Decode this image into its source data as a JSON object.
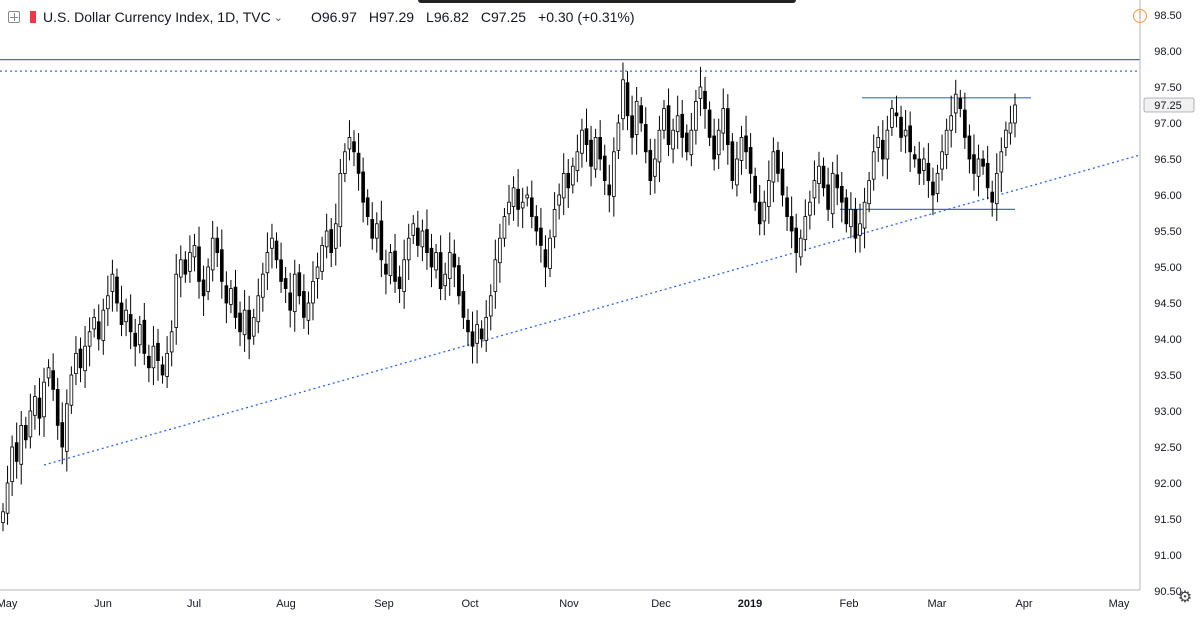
{
  "header": {
    "title": "U.S. Dollar Currency Index, 1D, TVC",
    "open": "O96.97",
    "high": "H97.29",
    "low": "L96.82",
    "close": "C97.25",
    "change": "+0.30 (+0.31%)"
  },
  "price_label": "97.25",
  "colors": {
    "candle_up": "#ffffff",
    "candle_down": "#000000",
    "candle_border": "#000000",
    "trendline": "#2962ff",
    "level_line": "#3a6fc4",
    "axis_text": "#131722",
    "alert": "#f89c3c"
  },
  "icons": {
    "symbol": "crosshair-box-icon",
    "alert": "alert-icon",
    "settings": "gear-icon"
  },
  "chart_data": {
    "type": "candlestick",
    "title": "U.S. Dollar Currency Index, 1D, TVC",
    "x_ticks": [
      "May",
      "Jun",
      "Jul",
      "Aug",
      "Sep",
      "Oct",
      "Nov",
      "Dec",
      "2019",
      "Feb",
      "Mar",
      "Apr",
      "May"
    ],
    "y_ticks": [
      "98.50",
      "98.00",
      "97.50",
      "97.00",
      "96.50",
      "96.00",
      "95.50",
      "95.00",
      "94.50",
      "94.00",
      "93.50",
      "93.00",
      "92.50",
      "92.00",
      "91.50",
      "91.00",
      "90.50"
    ],
    "ylim": [
      90.5,
      98.5
    ],
    "last_close": 97.25,
    "close_series": [
      91.6,
      92.0,
      92.5,
      92.3,
      92.8,
      92.6,
      93.0,
      93.2,
      92.9,
      93.4,
      93.6,
      93.3,
      92.8,
      92.5,
      93.1,
      93.5,
      93.8,
      93.6,
      93.9,
      94.1,
      94.3,
      94.0,
      94.4,
      94.6,
      94.9,
      94.5,
      94.2,
      94.4,
      94.1,
      93.9,
      94.2,
      93.8,
      93.6,
      93.9,
      93.7,
      93.5,
      93.8,
      94.1,
      94.9,
      95.1,
      94.9,
      95.2,
      95.3,
      94.8,
      94.6,
      95.0,
      95.4,
      95.2,
      94.8,
      94.5,
      94.7,
      94.3,
      94.1,
      94.4,
      94.0,
      94.3,
      94.6,
      94.9,
      95.2,
      95.4,
      95.1,
      94.8,
      94.7,
      94.4,
      94.9,
      94.6,
      94.3,
      94.5,
      94.8,
      95.0,
      95.3,
      95.5,
      95.2,
      95.6,
      96.3,
      96.6,
      96.8,
      96.6,
      96.3,
      95.9,
      95.7,
      95.4,
      95.6,
      95.1,
      94.9,
      95.2,
      94.8,
      94.7,
      95.1,
      95.4,
      95.6,
      95.3,
      95.5,
      95.2,
      95.0,
      95.2,
      94.7,
      94.9,
      95.2,
      95.0,
      94.6,
      94.3,
      94.1,
      93.9,
      94.2,
      94.0,
      94.3,
      94.6,
      95.1,
      95.4,
      95.7,
      95.9,
      96.1,
      95.8,
      95.9,
      96.0,
      95.7,
      95.5,
      95.3,
      95.0,
      95.4,
      95.8,
      96.0,
      96.3,
      96.1,
      96.4,
      96.6,
      96.9,
      96.7,
      96.4,
      96.8,
      96.5,
      96.2,
      96.0,
      96.6,
      97.0,
      97.6,
      97.1,
      96.8,
      97.3,
      97.0,
      96.6,
      96.2,
      96.5,
      96.9,
      97.2,
      96.7,
      96.9,
      97.1,
      96.8,
      96.6,
      96.9,
      97.3,
      97.5,
      97.2,
      96.8,
      96.5,
      96.9,
      97.2,
      96.7,
      96.2,
      96.5,
      96.8,
      96.6,
      96.3,
      95.9,
      95.6,
      95.9,
      96.2,
      96.6,
      96.3,
      96.0,
      95.7,
      95.5,
      95.2,
      95.4,
      95.7,
      95.9,
      96.2,
      96.4,
      96.1,
      95.8,
      96.3,
      96.1,
      95.9,
      95.6,
      95.8,
      95.4,
      95.6,
      95.9,
      96.2,
      96.6,
      96.8,
      96.5,
      96.9,
      97.2,
      97.1,
      96.8,
      96.9,
      96.6,
      96.5,
      96.3,
      96.5,
      96.2,
      96.0,
      96.3,
      96.6,
      96.9,
      97.1,
      97.4,
      97.2,
      96.8,
      96.5,
      96.3,
      96.5,
      96.4,
      96.1,
      95.9,
      96.3,
      96.6,
      96.9,
      97.0,
      97.25
    ],
    "overlays": [
      {
        "kind": "rising-trendline",
        "from": [
          "May",
          92.25
        ],
        "to": [
          "Apr",
          96.5
        ],
        "style": "dotted"
      },
      {
        "kind": "horizontal",
        "price": 97.88,
        "style": "solid"
      },
      {
        "kind": "horizontal",
        "price": 97.72,
        "style": "dotted"
      },
      {
        "kind": "range-top",
        "price": 97.35,
        "from": "Feb",
        "to": "Apr"
      },
      {
        "kind": "range-bottom",
        "price": 95.8,
        "from": "Feb",
        "to": "Apr"
      }
    ]
  }
}
